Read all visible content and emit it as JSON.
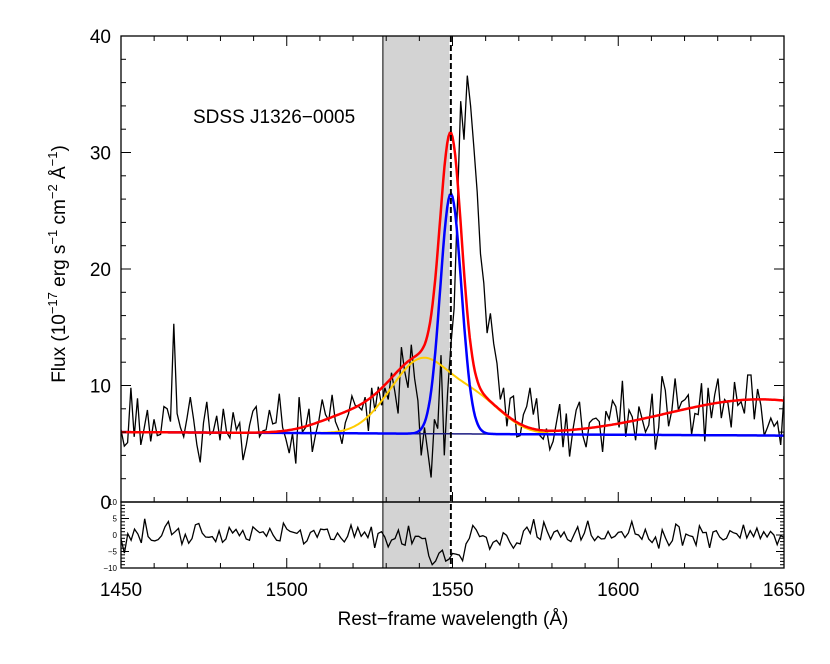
{
  "chart_data": {
    "type": "line",
    "object_name": "SDSS J1326−0005",
    "xlabel": "Rest−frame wavelength (Å)",
    "ylabel": {
      "base": "Flux (10",
      "exp1": "−17",
      "mid1": " erg s",
      "exp2": "−1",
      "mid2": " cm",
      "exp3": "−2",
      "mid3": " Å",
      "exp4": "−1",
      "end": ")"
    },
    "xlim": [
      1450,
      1650
    ],
    "ylim": [
      0,
      40
    ],
    "residual_ylim": [
      -10,
      10
    ],
    "xticks": [
      1450,
      1500,
      1550,
      1600,
      1650
    ],
    "xtick_labels": [
      "1450",
      "1500",
      "1550",
      "1600",
      "1650"
    ],
    "yticks": [
      0,
      10,
      20,
      30,
      40
    ],
    "ytick_labels": [
      "0",
      "10",
      "20",
      "30",
      "40"
    ],
    "residual_ticks": [
      -10,
      -5,
      0,
      5,
      10
    ],
    "residual_tick_labels": [
      "−10",
      "−5",
      "0",
      "5",
      "10"
    ],
    "shaded_region": [
      1529,
      1549
    ],
    "vertical_line": 1549.5,
    "continuum": {
      "color": "#1a1a80",
      "start": 6.0,
      "end": 5.7
    },
    "narrow_component": {
      "color": "#0000ff",
      "center": 1549.5,
      "amplitude": 20.6,
      "sigma": 3.2
    },
    "broad_component": {
      "color": "#ffcc00",
      "peaks": [
        {
          "center": 1541,
          "amplitude": 5.3,
          "sigma": 7.5
        },
        {
          "center": 1556,
          "amplitude": 3.2,
          "sigma": 8.5
        },
        {
          "center": 1531,
          "amplitude": 1.5,
          "sigma": 7
        }
      ]
    },
    "total_model": {
      "color": "#ff0000",
      "extra_peaks": [
        {
          "center": 1520,
          "amplitude": 1.6,
          "sigma": 10
        },
        {
          "center": 1643,
          "amplitude": 3.1,
          "sigma": 28
        }
      ]
    },
    "spectrum_flux": [
      6.2,
      4.8,
      5.1,
      9.8,
      5.6,
      8.9,
      4.9,
      6.3,
      7.9,
      5.2,
      7.1,
      5.7,
      5.8,
      8.2,
      8.0,
      6.9,
      15.3,
      7.6,
      6.4,
      5.6,
      7.2,
      9.0,
      7.1,
      4.9,
      3.4,
      6.8,
      8.6,
      5.8,
      6.1,
      7.4,
      5.3,
      8.0,
      6.0,
      5.5,
      7.7,
      6.2,
      6.8,
      3.6,
      4.9,
      6.6,
      7.8,
      8.2,
      5.6,
      6.1,
      6.2,
      7.9,
      6.7,
      6.8,
      9.3,
      6.4,
      5.4,
      4.2,
      5.9,
      3.3,
      9.0,
      6.0,
      6.4,
      8.0,
      4.3,
      5.8,
      7.0,
      8.8,
      7.5,
      7.0,
      9.2,
      6.9,
      6.2,
      5.0,
      6.8,
      7.6,
      9.1,
      8.3,
      8.2,
      7.9,
      9.0,
      6.1,
      9.8,
      7.8,
      9.9,
      8.3,
      9.8,
      8.8,
      11.1,
      9.5,
      7.6,
      13.3,
      11.2,
      9.8,
      13.5,
      10.6,
      8.7,
      4.0,
      6.4,
      4.3,
      2.1,
      7.1,
      6.3,
      12.6,
      4.0,
      9.4,
      13.5,
      16.6,
      25.4,
      34.4,
      31.1,
      36.6,
      34.0,
      30.4,
      26.6,
      21.3,
      18.8,
      14.5,
      16.2,
      13.6,
      11.9,
      8.8,
      9.8,
      6.5,
      8.9,
      9.1,
      5.6,
      5.7,
      7.5,
      8.2,
      9.8,
      7.5,
      8.9,
      5.7,
      5.4,
      6.3,
      4.5,
      5.2,
      6.8,
      8.4,
      4.7,
      7.6,
      3.9,
      6.2,
      7.9,
      8.6,
      5.7,
      4.7,
      6.8,
      7.1,
      7.2,
      6.9,
      4.3,
      7.8,
      7.1,
      8.7,
      8.2,
      6.4,
      10.4,
      5.6,
      7.9,
      7.3,
      5.3,
      8.2,
      7.1,
      6.0,
      6.6,
      9.3,
      4.5,
      6.4,
      10.8,
      9.6,
      6.5,
      7.9,
      10.6,
      7.9,
      8.6,
      8.8,
      9.2,
      5.8,
      7.6,
      7.5,
      10.2,
      5.2,
      9.8,
      7.2,
      9.2,
      10.6,
      7.2,
      8.8,
      8.5,
      6.4,
      10.3,
      8.3,
      8.6,
      7.6,
      10.9,
      10.9,
      7.1,
      9.7,
      8.3,
      5.7,
      6.4,
      7.2,
      6.5,
      6.9,
      4.9,
      9.1
    ],
    "residual_values": [
      -1.2,
      -5.5,
      0.4,
      -1.6,
      1.8,
      0.3,
      -2.4,
      4.9,
      -0.5,
      -1.6,
      -1.8,
      -1.4,
      -0.2,
      2.5,
      4.1,
      0.1,
      1.0,
      2.0,
      -2.8,
      0.2,
      -2.5,
      -1.1,
      3.1,
      3.5,
      0.6,
      -0.6,
      -0.7,
      -0.5,
      -2.0,
      1.3,
      -2.2,
      -1.2,
      2.3,
      0.6,
      1.7,
      -0.2,
      1.4,
      -1.2,
      -1.6,
      2.5,
      1.5,
      0.7,
      1.0,
      -0.4,
      2.0,
      -0.1,
      -1.6,
      -1.8,
      3.6,
      1.8,
      1.1,
      0.8,
      0.5,
      1.5,
      -2.7,
      -1.8,
      0.8,
      1.4,
      -0.7,
      1.8,
      1.6,
      1.8,
      -1.3,
      -1.4,
      0.6,
      -0.9,
      -2.1,
      -0.4,
      3.0,
      -0.6,
      2.3,
      -0.4,
      0.9,
      -0.8,
      2.5,
      -3.9,
      0.5,
      1.0,
      -0.6,
      -3.6,
      -1.5,
      -1.1,
      1.5,
      -2.7,
      -3.1,
      2.8,
      -2.6,
      -0.4,
      -0.4,
      -1.1,
      -1.0,
      -6.3,
      -9.0,
      -7.9,
      -5.5,
      -4.6,
      -7.9,
      -7.3,
      -5.6,
      -5.8,
      -6.1,
      -7.8,
      -2.7,
      -1.0,
      2.9,
      1.6,
      -0.5,
      -0.2,
      -0.7,
      -4.3,
      -2.2,
      -1.6,
      -3.0,
      0.7,
      -0.1,
      -2.3,
      -4.0,
      -2.4,
      -2.7,
      1.2,
      2.4,
      0.5,
      4.8,
      -0.6,
      -1.4,
      3.9,
      1.1,
      -1.3,
      0.9,
      1.4,
      -0.6,
      0.9,
      -1.4,
      -2.0,
      0.3,
      2.5,
      -1.5,
      0.6,
      4.3,
      -0.1,
      -1.7,
      -0.4,
      -1.2,
      -1.1,
      1.1,
      -0.9,
      -0.4,
      0.8,
      1.0,
      -0.8,
      0.6,
      4.1,
      0.3,
      0.0,
      -1.3,
      1.7,
      -1.2,
      -2.3,
      -0.6,
      -4.1,
      1.6,
      -1.0,
      -3.2,
      -1.7,
      3.3,
      2.5,
      -3.2,
      0.3,
      -0.2,
      -0.5,
      -3.1,
      2.8,
      0.7,
      0.8,
      -3.9,
      0.9,
      1.3,
      -0.6,
      -1.5,
      -1.0,
      1.3,
      0.7,
      0.4,
      -0.9,
      3.1,
      -0.9,
      1.3,
      -0.5,
      2.1,
      -1.1,
      1.0,
      -0.6,
      1.1,
      0.0,
      -2.9,
      -0.2,
      -0.7
    ]
  }
}
